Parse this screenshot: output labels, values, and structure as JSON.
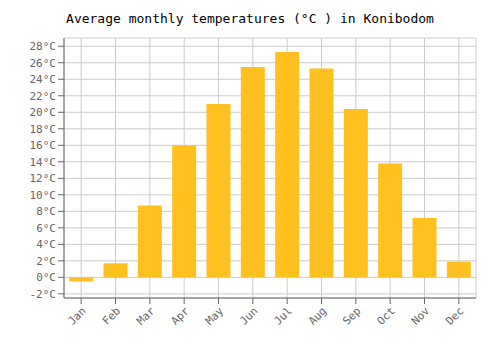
{
  "chart_data": {
    "type": "bar",
    "title": "Average monthly temperatures (°C ) in Konibodom",
    "categories": [
      "Jan",
      "Feb",
      "Mar",
      "Apr",
      "May",
      "Jun",
      "Jul",
      "Aug",
      "Sep",
      "Oct",
      "Nov",
      "Dec"
    ],
    "values": [
      -0.5,
      1.7,
      8.7,
      16.0,
      21.0,
      25.5,
      27.3,
      25.3,
      20.4,
      13.8,
      7.2,
      1.9
    ],
    "color": "#FFC020",
    "ylim": [
      -2.5,
      29
    ],
    "yticks": [
      {
        "value": -2,
        "label": "-2°C"
      },
      {
        "value": 0,
        "label": "0°C"
      },
      {
        "value": 2,
        "label": "2°C"
      },
      {
        "value": 4,
        "label": "4°C"
      },
      {
        "value": 6,
        "label": "6°C"
      },
      {
        "value": 8,
        "label": "8°C"
      },
      {
        "value": 10,
        "label": "10°C"
      },
      {
        "value": 12,
        "label": "12°C"
      },
      {
        "value": 14,
        "label": "14°C"
      },
      {
        "value": 16,
        "label": "16°C"
      },
      {
        "value": 18,
        "label": "18°C"
      },
      {
        "value": 20,
        "label": "20°C"
      },
      {
        "value": 22,
        "label": "22°C"
      },
      {
        "value": 24,
        "label": "24°C"
      },
      {
        "value": 26,
        "label": "26°C"
      },
      {
        "value": 28,
        "label": "28°C"
      }
    ],
    "grid": true
  }
}
